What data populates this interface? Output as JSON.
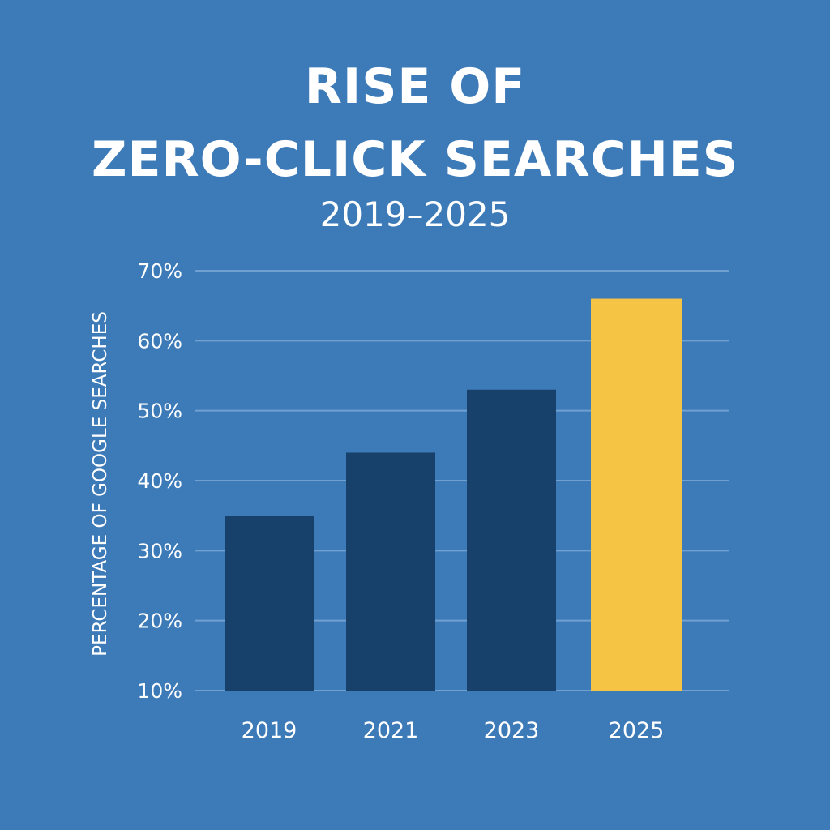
{
  "title_lines": [
    "RISE OF",
    "ZERO-CLICK SEARCHES"
  ],
  "subtitle": "2019–2025",
  "colors": {
    "background": "#3c7ab8",
    "bar_default": "#17416b",
    "bar_highlight": "#f5c444",
    "gridline": "#6fa0d0",
    "text": "#ffffff"
  },
  "chart_data": {
    "type": "bar",
    "categories": [
      "2019",
      "2021",
      "2023",
      "2025"
    ],
    "values": [
      35,
      44,
      53,
      66
    ],
    "highlight_index": 3,
    "ylabel": "PERCENTAGE OF GOOGLE SEARCHES",
    "xlabel": "",
    "ylim": [
      10,
      70
    ],
    "yticks": [
      10,
      20,
      30,
      40,
      50,
      60,
      70
    ],
    "ytick_labels": [
      "10%",
      "20%",
      "30%",
      "40%",
      "50%",
      "60%",
      "70%"
    ],
    "grid": true,
    "legend": false
  }
}
